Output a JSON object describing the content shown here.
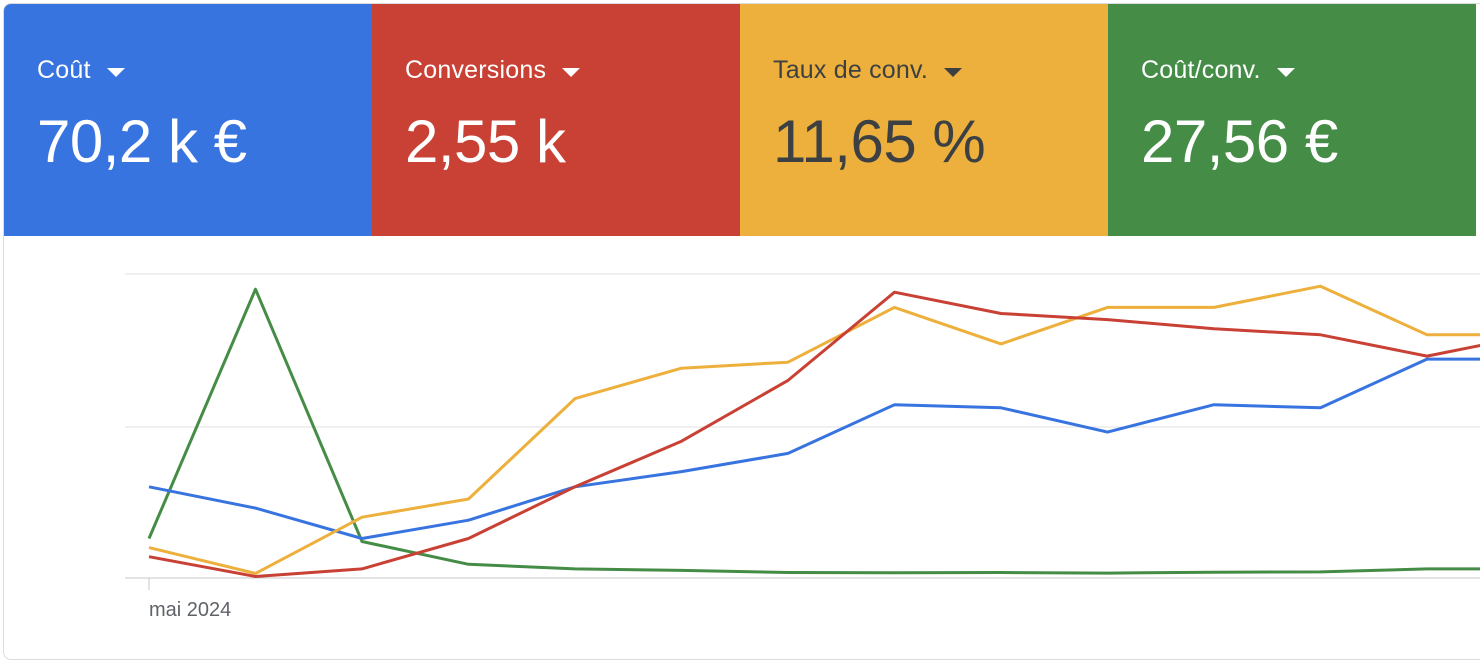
{
  "tiles": [
    {
      "label": "Coût",
      "value": "70,2 k €",
      "bg": "#3874e0",
      "fg": "#ffffff"
    },
    {
      "label": "Conversions",
      "value": "2,55 k",
      "bg": "#c94034",
      "fg": "#ffffff"
    },
    {
      "label": "Taux de conv.",
      "value": "11,65 %",
      "bg": "#edb03d",
      "fg": "#3c4043"
    },
    {
      "label": "Coût/conv.",
      "value": "27,56 €",
      "bg": "#458d47",
      "fg": "#ffffff"
    }
  ],
  "chart_data": {
    "type": "line",
    "x_tick_labels": [
      "mai 2024"
    ],
    "grid": true,
    "y_tick_labels_visible": false,
    "ylim": [
      0,
      100
    ],
    "series": [
      {
        "metric": "Coût",
        "color": "#3874e0",
        "values": [
          30,
          23,
          13,
          19,
          30,
          35,
          41,
          57,
          56,
          48,
          57,
          56,
          72,
          72,
          72
        ]
      },
      {
        "metric": "Conversions",
        "color": "#c94034",
        "values": [
          7,
          0.5,
          3,
          13,
          30,
          45,
          65,
          94,
          87,
          85,
          82,
          80,
          73,
          80,
          80
        ]
      },
      {
        "metric": "Taux de conv.",
        "color": "#edb03d",
        "values": [
          10,
          1.5,
          20,
          26,
          59,
          69,
          71,
          89,
          77,
          89,
          89,
          96,
          80,
          80,
          80
        ]
      },
      {
        "metric": "Coût/conv.",
        "color": "#458d47",
        "values": [
          13,
          95,
          12,
          4.5,
          3,
          2.5,
          1.8,
          1.7,
          1.8,
          1.6,
          1.9,
          2,
          3,
          3,
          3
        ]
      }
    ]
  }
}
